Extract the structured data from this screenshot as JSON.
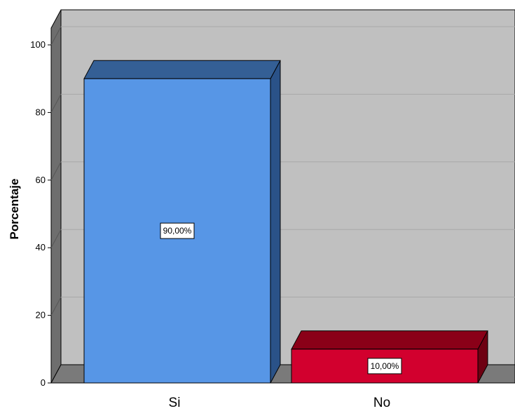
{
  "chart_data": {
    "type": "bar",
    "title": "",
    "xlabel": "",
    "ylabel": "Porcentaje",
    "categories": [
      "Si",
      "No"
    ],
    "values": [
      90,
      10
    ],
    "data_labels": [
      "90,00%",
      "10,00%"
    ],
    "ylim": [
      0,
      100
    ],
    "yticks": [
      0,
      20,
      40,
      60,
      80,
      100
    ],
    "grid": true,
    "legend": "none",
    "style": "3d",
    "colors": {
      "Si": {
        "front": "#5796e6",
        "top": "#345f95",
        "side": "#2a5288"
      },
      "No": {
        "front": "#d2002e",
        "top": "#8a0018",
        "side": "#6e0012"
      },
      "plot_back": "#c0c0c0",
      "plot_floor": "#7a7a7a",
      "plot_wall": "#6e6e6e",
      "gridline": "#a8a8a8"
    }
  }
}
